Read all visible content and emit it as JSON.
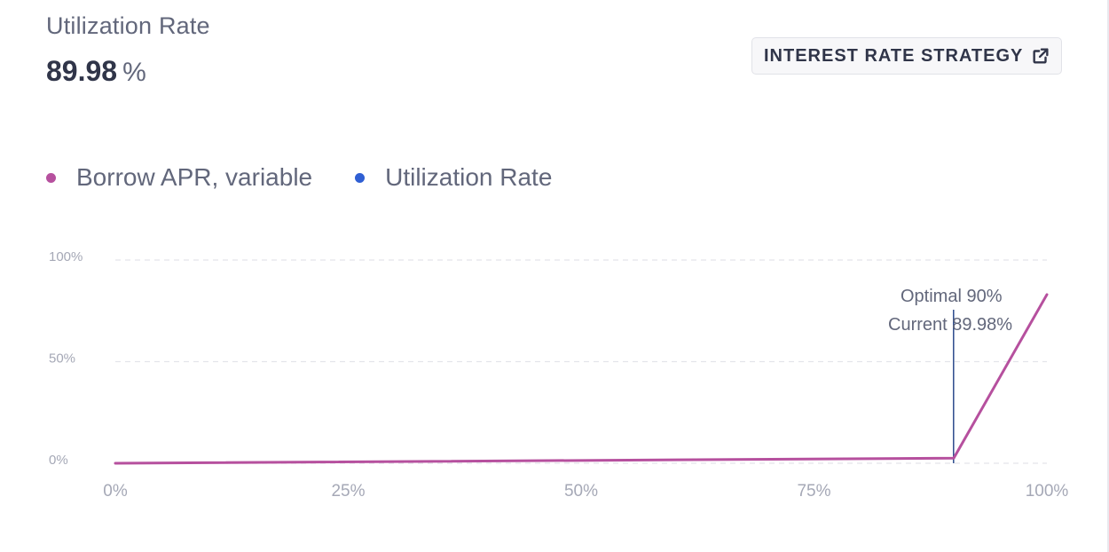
{
  "header": {
    "label": "Utilization Rate",
    "value": "89.98",
    "unit": "%"
  },
  "strategy_button": {
    "label": "INTEREST RATE STRATEGY",
    "icon": "external-link-icon"
  },
  "legend": [
    {
      "label": "Borrow APR, variable",
      "color": "#b6509e"
    },
    {
      "label": "Utilization Rate",
      "color": "#2f5fd3"
    }
  ],
  "chart_data": {
    "type": "line",
    "x_ticks": [
      "0%",
      "25%",
      "50%",
      "75%",
      "100%"
    ],
    "y_ticks": [
      "0%",
      "50%",
      "100%"
    ],
    "xlim": [
      0,
      100
    ],
    "ylim": [
      0,
      100
    ],
    "grid": true,
    "series": [
      {
        "name": "Borrow APR, variable",
        "color": "#b6509e",
        "x": [
          0,
          90,
          100
        ],
        "y": [
          0,
          2.5,
          83
        ]
      }
    ],
    "markers": [
      {
        "x": 90,
        "label": "Optimal 90%"
      },
      {
        "x": 89.98,
        "label": "Current 89.98%",
        "color": "#2c4a8c"
      }
    ]
  }
}
